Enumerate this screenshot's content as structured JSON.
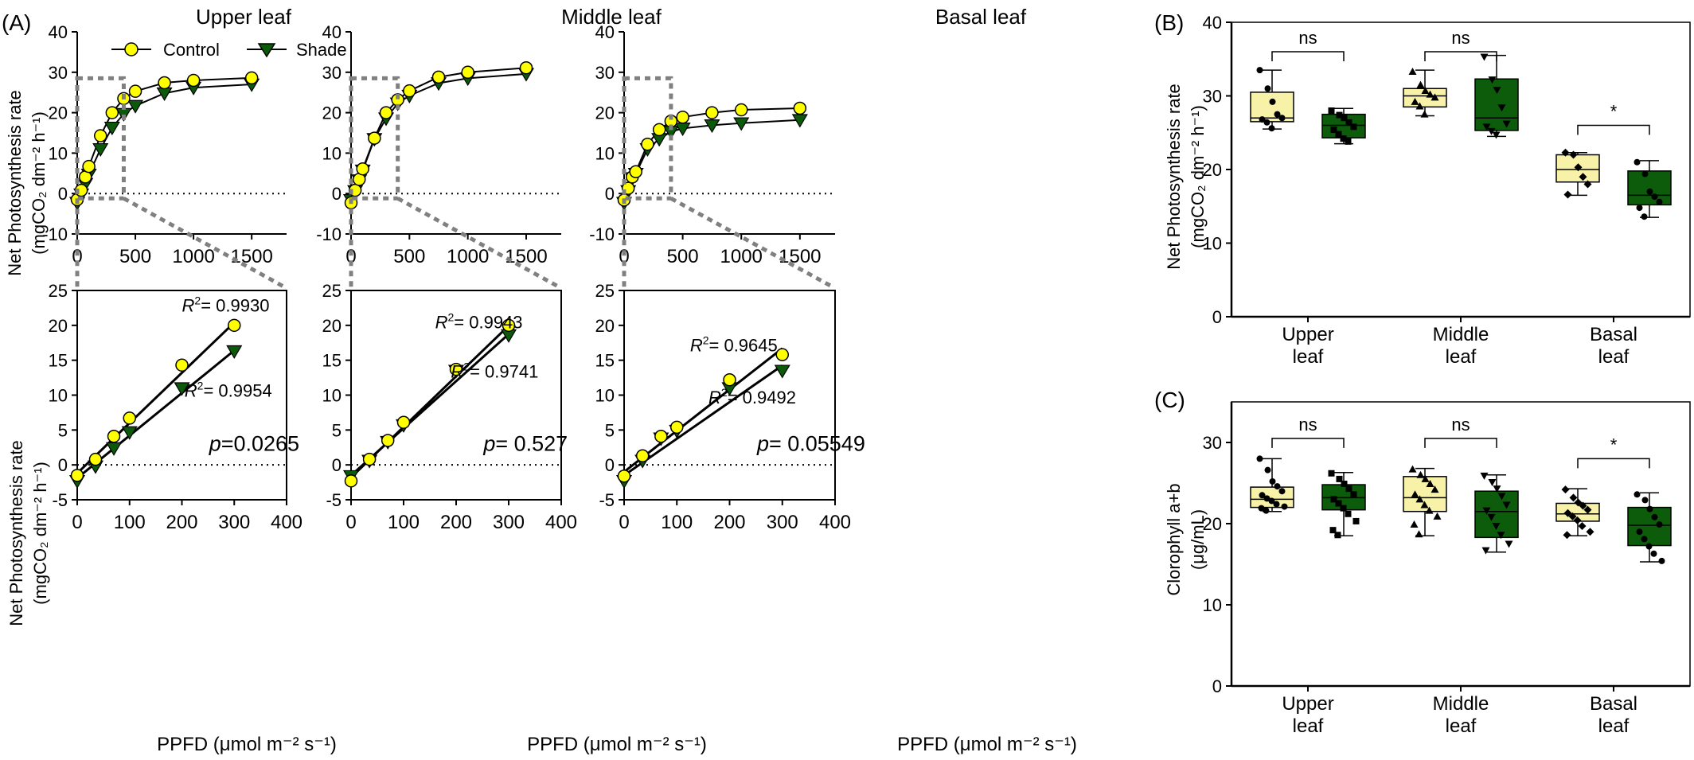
{
  "figure": {
    "panel_labels": {
      "A": "(A)",
      "B": "(B)",
      "C": "(C)"
    }
  },
  "legend": {
    "control": "Control",
    "shade": "Shade"
  },
  "colors": {
    "control_fill": "#ffff00",
    "shade_fill": "#0a5a0a",
    "box_control": "#f7f2a8",
    "box_shade": "#0c5c0c",
    "guide": "#808080"
  },
  "labels": {
    "net_rate_line1": "Net Photosynthesis rate",
    "net_rate_line2": "(mgCO₂ dm⁻² h⁻¹)",
    "ppfd": "PPFD (μmol m⁻² s⁻¹)",
    "chl_line1": "Clorophyll a+b",
    "chl_line2": "(μg/mL)"
  },
  "chart_data": [
    {
      "id": "A-upper-full",
      "type": "line",
      "title": "Upper leaf",
      "xlim": [
        0,
        1800
      ],
      "ylim": [
        -10,
        40
      ],
      "xticks": [
        0,
        500,
        1000,
        1500
      ],
      "yticks": [
        -10,
        0,
        10,
        20,
        30,
        40
      ],
      "x": [
        0,
        35,
        70,
        100,
        200,
        300,
        400,
        500,
        750,
        1000,
        1500
      ],
      "series": [
        {
          "name": "Control",
          "values": [
            -1.5,
            0.8,
            4.1,
            6.7,
            14.3,
            20.0,
            23.5,
            25.3,
            27.4,
            28.0,
            28.6
          ]
        },
        {
          "name": "Shade",
          "values": [
            -2.3,
            -0.2,
            2.4,
            4.7,
            11.0,
            16.3,
            19.7,
            21.7,
            24.8,
            26.2,
            27.0
          ]
        }
      ]
    },
    {
      "id": "A-middle-full",
      "type": "line",
      "title": "Middle leaf",
      "xlim": [
        0,
        1800
      ],
      "ylim": [
        -10,
        40
      ],
      "xticks": [
        0,
        500,
        1000,
        1500
      ],
      "yticks": [
        -10,
        0,
        10,
        20,
        30,
        40
      ],
      "x": [
        0,
        35,
        70,
        100,
        200,
        300,
        400,
        500,
        750,
        1000,
        1500
      ],
      "series": [
        {
          "name": "Control",
          "values": [
            -2.3,
            0.8,
            3.5,
            6.1,
            13.7,
            20.0,
            23.2,
            25.4,
            28.8,
            30.0,
            31.1
          ]
        },
        {
          "name": "Shade",
          "values": [
            -1.6,
            0.6,
            3.3,
            5.7,
            13.5,
            18.6,
            22.3,
            24.2,
            27.3,
            28.5,
            29.6
          ]
        }
      ]
    },
    {
      "id": "A-basal-full",
      "type": "line",
      "title": "Basal leaf",
      "xlim": [
        0,
        1800
      ],
      "ylim": [
        -10,
        40
      ],
      "xticks": [
        0,
        500,
        1000,
        1500
      ],
      "yticks": [
        -10,
        0,
        10,
        20,
        30,
        40
      ],
      "x": [
        0,
        35,
        70,
        100,
        200,
        300,
        400,
        500,
        750,
        1000,
        1500
      ],
      "series": [
        {
          "name": "Control",
          "values": [
            -1.6,
            1.3,
            4.1,
            5.4,
            12.2,
            15.8,
            17.9,
            18.9,
            20.0,
            20.7,
            21.1
          ]
        },
        {
          "name": "Shade",
          "values": [
            -2.3,
            0.6,
            3.8,
            4.9,
            11.0,
            13.5,
            15.3,
            16.1,
            16.9,
            17.4,
            18.2
          ]
        }
      ]
    },
    {
      "id": "A-upper-zoom",
      "type": "scatter",
      "xlim": [
        0,
        400
      ],
      "ylim": [
        -5,
        25
      ],
      "xticks": [
        0,
        100,
        200,
        300,
        400
      ],
      "yticks": [
        -5,
        0,
        5,
        10,
        15,
        20,
        25
      ],
      "x": [
        0,
        35,
        70,
        100,
        200,
        300
      ],
      "series": [
        {
          "name": "Control",
          "values": [
            -1.5,
            0.8,
            4.1,
            6.7,
            14.3,
            20.0
          ],
          "fit": [
            -1.2,
            0.072
          ],
          "r2": "0.9930"
        },
        {
          "name": "Shade",
          "values": [
            -2.3,
            -0.2,
            2.4,
            4.7,
            11.0,
            16.3
          ],
          "fit": [
            -1.9,
            0.061
          ],
          "r2": "0.9954"
        }
      ],
      "p_value": "=0.0265"
    },
    {
      "id": "A-middle-zoom",
      "type": "scatter",
      "xlim": [
        0,
        400
      ],
      "ylim": [
        -5,
        25
      ],
      "xticks": [
        0,
        100,
        200,
        300,
        400
      ],
      "yticks": [
        -5,
        0,
        5,
        10,
        15,
        20,
        25
      ],
      "x": [
        0,
        35,
        70,
        100,
        200,
        300
      ],
      "series": [
        {
          "name": "Control",
          "values": [
            -2.3,
            0.8,
            3.5,
            6.1,
            13.7,
            20.0
          ],
          "fit": [
            -1.8,
            0.0725
          ],
          "r2": "0.9943"
        },
        {
          "name": "Shade",
          "values": [
            -1.6,
            0.6,
            3.3,
            5.7,
            13.5,
            18.6
          ],
          "fit": [
            -1.5,
            0.0675
          ],
          "r2": "0.9741"
        }
      ],
      "p_value": "= 0.527"
    },
    {
      "id": "A-basal-zoom",
      "type": "scatter",
      "xlim": [
        0,
        400
      ],
      "ylim": [
        -5,
        25
      ],
      "xticks": [
        0,
        100,
        200,
        300,
        400
      ],
      "yticks": [
        -5,
        0,
        5,
        10,
        15,
        20,
        25
      ],
      "x": [
        0,
        35,
        70,
        100,
        200,
        300
      ],
      "series": [
        {
          "name": "Control",
          "values": [
            -1.6,
            1.3,
            4.1,
            5.4,
            12.2,
            15.8
          ],
          "fit": [
            -1.0,
            0.059
          ],
          "r2": "0.9645"
        },
        {
          "name": "Shade",
          "values": [
            -2.3,
            0.6,
            3.8,
            4.9,
            11.0,
            13.5
          ],
          "fit": [
            -1.5,
            0.0525
          ],
          "r2": "0.9492"
        }
      ],
      "p_value": "= 0.05549"
    },
    {
      "id": "B",
      "type": "box",
      "ylim": [
        0,
        40
      ],
      "yticks": [
        0,
        10,
        20,
        30,
        40
      ],
      "categories": [
        "Upper\nleaf",
        "Middle\nleaf",
        "Basal\nleaf"
      ],
      "boxes": [
        {
          "group": 0,
          "name": "Control",
          "q1": 26.5,
          "median": 27.0,
          "q3": 30.5,
          "min": 25.5,
          "max": 33.5,
          "points": [
            33.5,
            31.0,
            29.2,
            27.5,
            27.0,
            26.8,
            26.4,
            25.6
          ]
        },
        {
          "group": 0,
          "name": "Shade",
          "q1": 24.3,
          "median": 26.0,
          "q3": 27.5,
          "min": 23.5,
          "max": 28.3,
          "points": [
            28.0,
            27.4,
            27.0,
            26.4,
            25.8,
            25.4,
            24.8,
            24.2,
            23.8
          ]
        },
        {
          "group": 1,
          "name": "Control",
          "q1": 28.5,
          "median": 30.0,
          "q3": 31.0,
          "min": 27.3,
          "max": 33.5,
          "points": [
            33.3,
            31.5,
            30.7,
            30.2,
            29.8,
            29.2,
            28.6,
            27.5
          ]
        },
        {
          "group": 1,
          "name": "Shade",
          "q1": 25.3,
          "median": 27.0,
          "q3": 32.3,
          "min": 24.5,
          "max": 35.5,
          "points": [
            35.3,
            32.2,
            30.8,
            28.4,
            26.2,
            25.8,
            25.2,
            24.7
          ]
        },
        {
          "group": 2,
          "name": "Control",
          "q1": 18.3,
          "median": 20.0,
          "q3": 22.0,
          "min": 16.5,
          "max": 22.3,
          "points": [
            22.3,
            22.0,
            20.3,
            19.0,
            18.0,
            16.6
          ]
        },
        {
          "group": 2,
          "name": "Shade",
          "q1": 15.2,
          "median": 16.5,
          "q3": 19.8,
          "min": 13.5,
          "max": 21.2,
          "points": [
            21.0,
            19.4,
            17.0,
            16.3,
            15.6,
            14.8,
            13.6
          ]
        }
      ],
      "brackets": [
        {
          "group": 0,
          "label": "ns",
          "y": 36.0
        },
        {
          "group": 1,
          "label": "ns",
          "y": 36.0
        },
        {
          "group": 2,
          "label": "*",
          "y": 26.0
        }
      ]
    },
    {
      "id": "C",
      "type": "box",
      "ylim": [
        0,
        35
      ],
      "yticks": [
        0,
        10,
        20,
        30
      ],
      "categories": [
        "Upper\nleaf",
        "Middle\nleaf",
        "Basal\nleaf"
      ],
      "boxes": [
        {
          "group": 0,
          "name": "Control",
          "q1": 22.0,
          "median": 23.0,
          "q3": 24.5,
          "min": 21.5,
          "max": 28.0,
          "points": [
            28.0,
            26.6,
            25.2,
            24.6,
            24.0,
            23.5,
            23.1,
            22.8,
            22.4,
            22.1,
            21.9,
            21.6
          ]
        },
        {
          "group": 0,
          "name": "Shade",
          "q1": 21.7,
          "median": 23.2,
          "q3": 24.8,
          "min": 18.5,
          "max": 26.3,
          "points": [
            26.2,
            25.5,
            24.9,
            24.3,
            23.6,
            23.0,
            22.5,
            21.9,
            21.2,
            20.3,
            19.2,
            18.6
          ]
        },
        {
          "group": 1,
          "name": "Control",
          "q1": 21.5,
          "median": 23.2,
          "q3": 25.8,
          "min": 18.5,
          "max": 26.8,
          "points": [
            26.7,
            26.0,
            25.5,
            24.9,
            24.2,
            23.6,
            23.0,
            22.3,
            21.6,
            20.9,
            19.9,
            18.7
          ]
        },
        {
          "group": 1,
          "name": "Shade",
          "q1": 18.3,
          "median": 21.5,
          "q3": 24.0,
          "min": 16.5,
          "max": 26.0,
          "points": [
            25.9,
            25.1,
            24.3,
            23.4,
            22.3,
            21.6,
            20.8,
            19.7,
            18.6,
            17.5,
            16.7
          ]
        },
        {
          "group": 2,
          "name": "Control",
          "q1": 20.3,
          "median": 21.2,
          "q3": 22.5,
          "min": 18.5,
          "max": 24.3,
          "points": [
            24.2,
            23.2,
            22.6,
            22.2,
            21.7,
            21.3,
            20.9,
            20.4,
            19.7,
            19.0,
            18.6
          ]
        },
        {
          "group": 2,
          "name": "Shade",
          "q1": 17.3,
          "median": 19.8,
          "q3": 22.0,
          "min": 15.3,
          "max": 23.8,
          "points": [
            23.6,
            22.9,
            21.8,
            20.8,
            19.9,
            19.0,
            18.1,
            17.2,
            16.3,
            15.4
          ]
        }
      ],
      "brackets": [
        {
          "group": 0,
          "label": "ns",
          "y": 30.5
        },
        {
          "group": 1,
          "label": "ns",
          "y": 30.5
        },
        {
          "group": 2,
          "label": "*",
          "y": 28.0
        }
      ]
    }
  ]
}
